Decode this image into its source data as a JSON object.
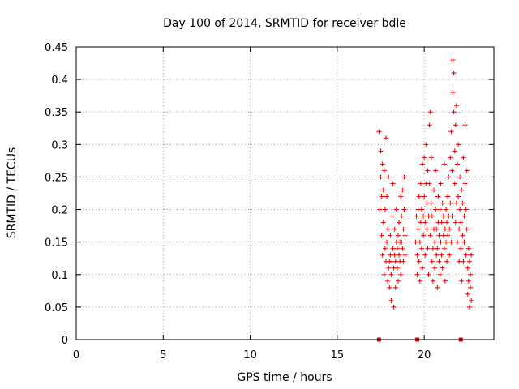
{
  "chart_data": {
    "type": "scatter",
    "title": "Day 100 of 2014, SRMTID for receiver bdle",
    "xlabel": "GPS time / hours",
    "ylabel": "SRMTID / TECUs",
    "xlim": [
      0,
      24
    ],
    "ylim": [
      0,
      0.45
    ],
    "xticks": [
      0,
      5,
      10,
      15,
      20
    ],
    "xtick_labels": [
      "0",
      "5",
      "10",
      "15",
      "20"
    ],
    "yticks": [
      0,
      0.05,
      0.1,
      0.15,
      0.2,
      0.25,
      0.3,
      0.35,
      0.4,
      0.45
    ],
    "ytick_labels": [
      "0",
      "0.05",
      "0.1",
      "0.15",
      "0.2",
      "0.25",
      "0.3",
      "0.35",
      "0.4",
      "0.45"
    ],
    "grid": true,
    "marker": "plus",
    "color": "#dd0000",
    "zero_markers_x": [
      17.4,
      19.6,
      22.1
    ],
    "series": [
      {
        "name": "SRMTID",
        "points": [
          [
            17.4,
            0.32
          ],
          [
            17.45,
            0.2
          ],
          [
            17.5,
            0.25
          ],
          [
            17.5,
            0.29
          ],
          [
            17.55,
            0.22
          ],
          [
            17.55,
            0.16
          ],
          [
            17.6,
            0.13
          ],
          [
            17.6,
            0.27
          ],
          [
            17.65,
            0.18
          ],
          [
            17.65,
            0.23
          ],
          [
            17.7,
            0.26
          ],
          [
            17.7,
            0.1
          ],
          [
            17.75,
            0.14
          ],
          [
            17.75,
            0.2
          ],
          [
            17.8,
            0.31
          ],
          [
            17.8,
            0.12
          ],
          [
            17.85,
            0.15
          ],
          [
            17.85,
            0.22
          ],
          [
            17.9,
            0.09
          ],
          [
            17.9,
            0.17
          ],
          [
            17.95,
            0.11
          ],
          [
            17.95,
            0.25
          ],
          [
            18.0,
            0.12
          ],
          [
            18.0,
            0.08
          ],
          [
            18.05,
            0.13
          ],
          [
            18.05,
            0.16
          ],
          [
            18.1,
            0.06
          ],
          [
            18.1,
            0.1
          ],
          [
            18.15,
            0.12
          ],
          [
            18.15,
            0.19
          ],
          [
            18.2,
            0.24
          ],
          [
            18.2,
            0.14
          ],
          [
            18.25,
            0.05
          ],
          [
            18.25,
            0.11
          ],
          [
            18.3,
            0.17
          ],
          [
            18.3,
            0.13
          ],
          [
            18.35,
            0.08
          ],
          [
            18.35,
            0.12
          ],
          [
            18.4,
            0.15
          ],
          [
            18.4,
            0.2
          ],
          [
            18.45,
            0.11
          ],
          [
            18.45,
            0.14
          ],
          [
            18.5,
            0.16
          ],
          [
            18.5,
            0.09
          ],
          [
            18.55,
            0.13
          ],
          [
            18.55,
            0.18
          ],
          [
            18.6,
            0.12
          ],
          [
            18.6,
            0.15
          ],
          [
            18.65,
            0.22
          ],
          [
            18.65,
            0.1
          ],
          [
            18.7,
            0.15
          ],
          [
            18.7,
            0.19
          ],
          [
            18.75,
            0.14
          ],
          [
            18.75,
            0.23
          ],
          [
            18.8,
            0.12
          ],
          [
            18.8,
            0.17
          ],
          [
            18.85,
            0.2
          ],
          [
            18.85,
            0.25
          ],
          [
            18.9,
            0.13
          ],
          [
            18.9,
            0.16
          ],
          [
            19.5,
            0.15
          ],
          [
            19.55,
            0.19
          ],
          [
            19.6,
            0.1
          ],
          [
            19.6,
            0.13
          ],
          [
            19.65,
            0.17
          ],
          [
            19.65,
            0.2
          ],
          [
            19.7,
            0.12
          ],
          [
            19.7,
            0.22
          ],
          [
            19.75,
            0.15
          ],
          [
            19.75,
            0.09
          ],
          [
            19.8,
            0.18
          ],
          [
            19.8,
            0.24
          ],
          [
            19.85,
            0.14
          ],
          [
            19.85,
            0.2
          ],
          [
            19.9,
            0.27
          ],
          [
            19.9,
            0.11
          ],
          [
            19.95,
            0.19
          ],
          [
            19.95,
            0.16
          ],
          [
            20.0,
            0.22
          ],
          [
            20.0,
            0.28
          ],
          [
            20.05,
            0.13
          ],
          [
            20.05,
            0.18
          ],
          [
            20.1,
            0.24
          ],
          [
            20.1,
            0.3
          ],
          [
            20.15,
            0.17
          ],
          [
            20.15,
            0.21
          ],
          [
            20.2,
            0.14
          ],
          [
            20.2,
            0.26
          ],
          [
            20.25,
            0.19
          ],
          [
            20.25,
            0.1
          ],
          [
            20.3,
            0.33
          ],
          [
            20.3,
            0.24
          ],
          [
            20.35,
            0.35
          ],
          [
            20.35,
            0.16
          ],
          [
            20.4,
            0.21
          ],
          [
            20.4,
            0.28
          ],
          [
            20.45,
            0.12
          ],
          [
            20.45,
            0.19
          ],
          [
            20.5,
            0.14
          ],
          [
            20.5,
            0.09
          ],
          [
            20.55,
            0.17
          ],
          [
            20.55,
            0.23
          ],
          [
            20.6,
            0.15
          ],
          [
            20.6,
            0.11
          ],
          [
            20.65,
            0.2
          ],
          [
            20.65,
            0.26
          ],
          [
            20.7,
            0.13
          ],
          [
            20.7,
            0.17
          ],
          [
            20.75,
            0.08
          ],
          [
            20.75,
            0.14
          ],
          [
            20.8,
            0.18
          ],
          [
            20.8,
            0.22
          ],
          [
            20.85,
            0.12
          ],
          [
            20.85,
            0.16
          ],
          [
            20.9,
            0.1
          ],
          [
            20.9,
            0.2
          ],
          [
            20.95,
            0.15
          ],
          [
            20.95,
            0.24
          ],
          [
            21.0,
            0.13
          ],
          [
            21.0,
            0.18
          ],
          [
            21.05,
            0.21
          ],
          [
            21.05,
            0.11
          ],
          [
            21.1,
            0.16
          ],
          [
            21.1,
            0.19
          ],
          [
            21.15,
            0.14
          ],
          [
            21.15,
            0.27
          ],
          [
            21.2,
            0.17
          ],
          [
            21.2,
            0.09
          ],
          [
            21.25,
            0.2
          ],
          [
            21.25,
            0.15
          ],
          [
            21.3,
            0.18
          ],
          [
            21.3,
            0.12
          ],
          [
            21.35,
            0.22
          ],
          [
            21.35,
            0.16
          ],
          [
            21.4,
            0.19
          ],
          [
            21.4,
            0.25
          ],
          [
            21.45,
            0.13
          ],
          [
            21.45,
            0.17
          ],
          [
            21.5,
            0.28
          ],
          [
            21.5,
            0.21
          ],
          [
            21.55,
            0.15
          ],
          [
            21.55,
            0.32
          ],
          [
            21.6,
            0.26
          ],
          [
            21.6,
            0.19
          ],
          [
            21.65,
            0.38
          ],
          [
            21.65,
            0.43
          ],
          [
            21.7,
            0.35
          ],
          [
            21.7,
            0.41
          ],
          [
            21.75,
            0.29
          ],
          [
            21.75,
            0.24
          ],
          [
            21.8,
            0.33
          ],
          [
            21.8,
            0.18
          ],
          [
            21.85,
            0.36
          ],
          [
            21.85,
            0.21
          ],
          [
            21.9,
            0.27
          ],
          [
            21.9,
            0.15
          ],
          [
            21.95,
            0.22
          ],
          [
            21.95,
            0.3
          ],
          [
            22.0,
            0.17
          ],
          [
            22.0,
            0.12
          ],
          [
            22.05,
            0.2
          ],
          [
            22.05,
            0.25
          ],
          [
            22.1,
            0.14
          ],
          [
            22.1,
            0.18
          ],
          [
            22.15,
            0.23
          ],
          [
            22.15,
            0.09
          ],
          [
            22.2,
            0.16
          ],
          [
            22.2,
            0.21
          ],
          [
            22.25,
            0.12
          ],
          [
            22.25,
            0.28
          ],
          [
            22.3,
            0.19
          ],
          [
            22.3,
            0.15
          ],
          [
            22.35,
            0.33
          ],
          [
            22.35,
            0.24
          ],
          [
            22.4,
            0.2
          ],
          [
            22.4,
            0.13
          ],
          [
            22.45,
            0.17
          ],
          [
            22.45,
            0.26
          ],
          [
            22.5,
            0.11
          ],
          [
            22.5,
            0.07
          ],
          [
            22.55,
            0.14
          ],
          [
            22.55,
            0.09
          ],
          [
            22.6,
            0.05
          ],
          [
            22.6,
            0.12
          ],
          [
            22.65,
            0.08
          ],
          [
            22.65,
            0.1
          ],
          [
            22.7,
            0.06
          ],
          [
            22.7,
            0.13
          ]
        ]
      }
    ]
  }
}
